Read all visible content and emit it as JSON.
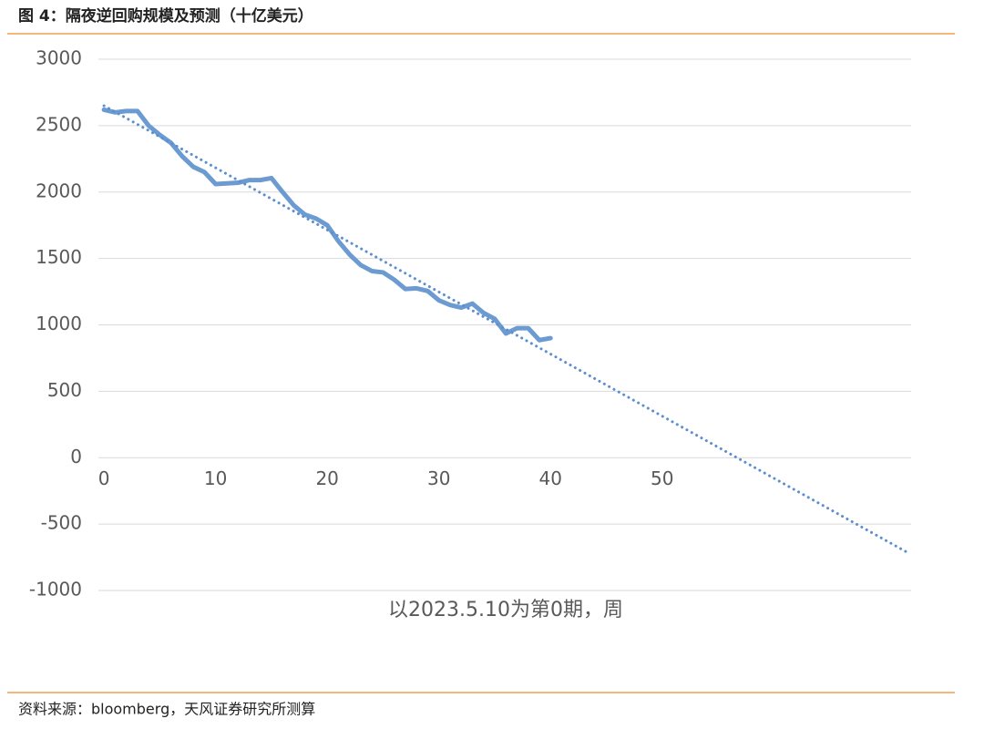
{
  "chart_data": {
    "type": "line",
    "title": "图 4：隔夜逆回购规模及预测（十亿美元）",
    "x_label": "以2023.5.10为第0期，周",
    "source": "资料来源：bloomberg，天风证券研究所测算",
    "series": [
      {
        "color": "#6b9bd1",
        "style": "solid",
        "x": [
          0,
          1,
          2,
          3,
          4,
          5,
          6,
          7,
          8,
          9,
          10,
          11,
          12,
          13,
          14,
          15,
          16,
          17,
          18,
          19,
          20,
          21,
          22,
          23,
          24,
          25,
          26,
          27,
          28,
          29,
          30,
          31,
          32,
          33,
          34,
          35,
          36,
          37,
          38,
          39,
          40
        ],
        "values": [
          2620,
          2600,
          2610,
          2610,
          2500,
          2430,
          2370,
          2270,
          2190,
          2150,
          2060,
          2065,
          2070,
          2090,
          2090,
          2105,
          2000,
          1900,
          1830,
          1800,
          1750,
          1630,
          1530,
          1450,
          1405,
          1395,
          1340,
          1270,
          1275,
          1255,
          1185,
          1150,
          1130,
          1160,
          1090,
          1045,
          935,
          975,
          975,
          885,
          900
        ]
      },
      {
        "color": "#5b8fcf",
        "style": "dotted",
        "x": [
          0,
          72
        ],
        "values": [
          2650,
          -715
        ]
      }
    ],
    "xlim": [
      -0.5,
      72.3
    ],
    "xticks": [
      0,
      10,
      20,
      30,
      40,
      50
    ],
    "ylim": [
      -1000,
      3000
    ],
    "yticks": [
      3000,
      2500,
      2000,
      1500,
      1000,
      500,
      0,
      -500,
      -1000
    ],
    "grid": true
  }
}
